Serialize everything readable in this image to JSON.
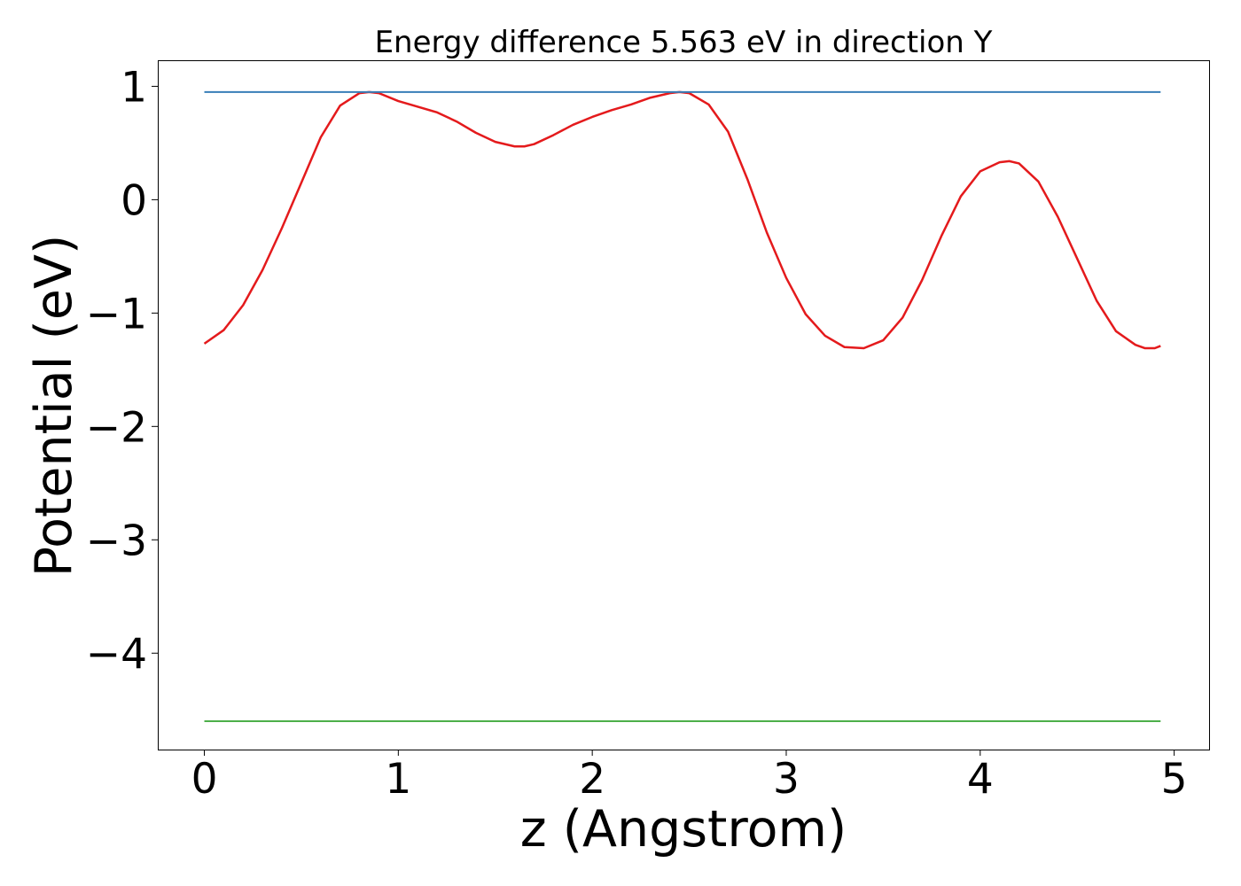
{
  "chart_data": {
    "type": "line",
    "title": "Energy difference 5.563 eV in direction Y",
    "xlabel": "z (Angstrom)",
    "ylabel": "Potential (eV)",
    "xlim": [
      -0.24,
      5.18
    ],
    "ylim": [
      -4.85,
      1.23
    ],
    "xticks": [
      0,
      1,
      2,
      3,
      4,
      5
    ],
    "xtick_labels": [
      "0",
      "1",
      "2",
      "3",
      "4",
      "5"
    ],
    "yticks": [
      1,
      0,
      -1,
      -2,
      -3,
      -4
    ],
    "ytick_labels": [
      "1",
      "0",
      "−1",
      "−2",
      "−3",
      "−4"
    ],
    "grid": false,
    "legend": "none",
    "series": [
      {
        "color": "#e41a1c",
        "x": [
          0.0,
          0.1,
          0.2,
          0.3,
          0.4,
          0.5,
          0.6,
          0.7,
          0.8,
          0.85,
          0.9,
          1.0,
          1.1,
          1.2,
          1.3,
          1.4,
          1.5,
          1.6,
          1.65,
          1.7,
          1.8,
          1.9,
          2.0,
          2.1,
          2.2,
          2.3,
          2.4,
          2.45,
          2.5,
          2.6,
          2.7,
          2.8,
          2.9,
          3.0,
          3.1,
          3.2,
          3.3,
          3.4,
          3.5,
          3.6,
          3.7,
          3.8,
          3.9,
          4.0,
          4.1,
          4.15,
          4.2,
          4.3,
          4.4,
          4.5,
          4.6,
          4.7,
          4.8,
          4.85,
          4.9,
          4.93
        ],
        "y": [
          -1.27,
          -1.15,
          -0.93,
          -0.62,
          -0.25,
          0.15,
          0.55,
          0.83,
          0.94,
          0.95,
          0.94,
          0.87,
          0.82,
          0.77,
          0.69,
          0.59,
          0.51,
          0.47,
          0.47,
          0.49,
          0.57,
          0.66,
          0.73,
          0.79,
          0.84,
          0.9,
          0.94,
          0.95,
          0.94,
          0.84,
          0.6,
          0.18,
          -0.29,
          -0.69,
          -1.01,
          -1.2,
          -1.3,
          -1.31,
          -1.24,
          -1.04,
          -0.71,
          -0.32,
          0.03,
          0.25,
          0.33,
          0.34,
          0.32,
          0.16,
          -0.15,
          -0.52,
          -0.89,
          -1.16,
          -1.28,
          -1.31,
          -1.31,
          -1.29
        ]
      },
      {
        "color": "#377eb8",
        "x": [
          0.0,
          4.93
        ],
        "y": [
          0.95,
          0.95
        ]
      },
      {
        "color": "#4daf4a",
        "x": [
          0.0,
          4.93
        ],
        "y": [
          -4.6,
          -4.6
        ]
      }
    ]
  }
}
